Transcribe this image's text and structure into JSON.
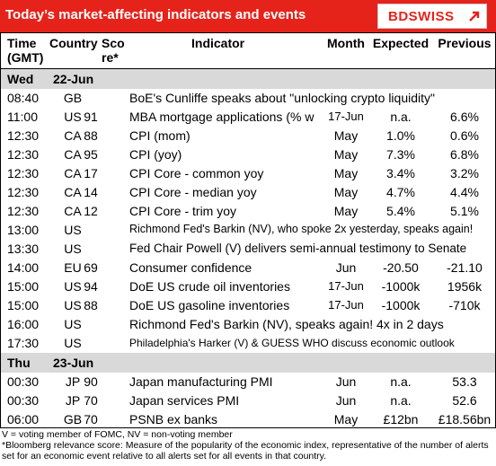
{
  "header": {
    "title": "Today’s market-affecting indicators and events",
    "logo_text": "BDSWISS",
    "brand_color": "#e5231b"
  },
  "columns": {
    "time": [
      "Time",
      "(GMT)"
    ],
    "country": "Country",
    "score": [
      "Sco",
      "re*"
    ],
    "indicator": "Indicator",
    "month": "Month",
    "expected": "Expected",
    "previous": "Previous"
  },
  "days": [
    {
      "label": "Wed",
      "date": "22-Jun",
      "rows": [
        {
          "time": "08:40",
          "country": "GB",
          "score": "",
          "indicator": "BoE's Cunliffe speaks about \"unlocking crypto liquidity\"",
          "month": "",
          "expected": "",
          "previous": ""
        },
        {
          "time": "11:00",
          "country": "US",
          "score": "91",
          "indicator": "MBA mortgage applications (% w",
          "month": "17-Jun",
          "expected": "n.a.",
          "previous": "6.6%"
        },
        {
          "time": "12:30",
          "country": "CA",
          "score": "88",
          "indicator": "CPI (mom)",
          "month": "May",
          "expected": "1.0%",
          "previous": "0.6%"
        },
        {
          "time": "12:30",
          "country": "CA",
          "score": "95",
          "indicator": "CPI (yoy)",
          "month": "May",
          "expected": "7.3%",
          "previous": "6.8%"
        },
        {
          "time": "12:30",
          "country": "CA",
          "score": "17",
          "indicator": "CPI Core - common yoy",
          "month": "May",
          "expected": "3.4%",
          "previous": "3.2%"
        },
        {
          "time": "12:30",
          "country": "CA",
          "score": "14",
          "indicator": "CPI Core - median yoy",
          "month": "May",
          "expected": "4.7%",
          "previous": "4.4%"
        },
        {
          "time": "12:30",
          "country": "CA",
          "score": "12",
          "indicator": "CPI Core - trim yoy",
          "month": "May",
          "expected": "5.4%",
          "previous": "5.1%"
        },
        {
          "time": "13:00",
          "country": "US",
          "score": "",
          "indicator": "Richmond Fed's Barkin (NV), who spoke 2x yesterday, speaks again!",
          "month": "",
          "expected": "",
          "previous": ""
        },
        {
          "time": "13:30",
          "country": "US",
          "score": "",
          "indicator": "Fed Chair Powell (V) delivers semi-annual testimony to Senate",
          "month": "",
          "expected": "",
          "previous": ""
        },
        {
          "time": "14:00",
          "country": "EU",
          "score": "69",
          "indicator": "Consumer confidence",
          "month": "Jun",
          "expected": "-20.50",
          "previous": "-21.10"
        },
        {
          "time": "15:00",
          "country": "US",
          "score": "94",
          "indicator": "DoE US crude oil inventories",
          "month": "17-Jun",
          "expected": "-1000k",
          "previous": "1956k"
        },
        {
          "time": "15:00",
          "country": "US",
          "score": "88",
          "indicator": "DoE US gasoline inventories",
          "month": "17-Jun",
          "expected": "-1000k",
          "previous": "-710k"
        },
        {
          "time": "16:00",
          "country": "US",
          "score": "",
          "indicator": "Richmond Fed's Barkin (NV), speaks again! 4x in 2 days",
          "month": "",
          "expected": "",
          "previous": ""
        },
        {
          "time": "17:30",
          "country": "US",
          "score": "",
          "indicator": "Philadelphia's Harker (V) & GUESS WHO discuss economic outlook",
          "month": "",
          "expected": "",
          "previous": ""
        }
      ]
    },
    {
      "label": "Thu",
      "date": "23-Jun",
      "rows": [
        {
          "time": "00:30",
          "country": "JP",
          "score": "90",
          "indicator": "Japan manufacturing PMI",
          "month": "Jun",
          "expected": "n.a.",
          "previous": "53.3"
        },
        {
          "time": "00:30",
          "country": "JP",
          "score": "70",
          "indicator": "Japan services PMI",
          "month": "Jun",
          "expected": "n.a.",
          "previous": "52.6"
        },
        {
          "time": "06:00",
          "country": "GB",
          "score": "70",
          "indicator": "PSNB ex banks",
          "month": "May",
          "expected": "£12bn",
          "previous": "£18.56bn"
        }
      ]
    }
  ],
  "footnotes": [
    "V = voting member of FOMC, NV = non-voting member",
    "*Bloomberg relevance score:  Measure of the popularity of the economic index, representative of the number of alerts set for an economic event relative to all alerts set for all events in that country."
  ]
}
